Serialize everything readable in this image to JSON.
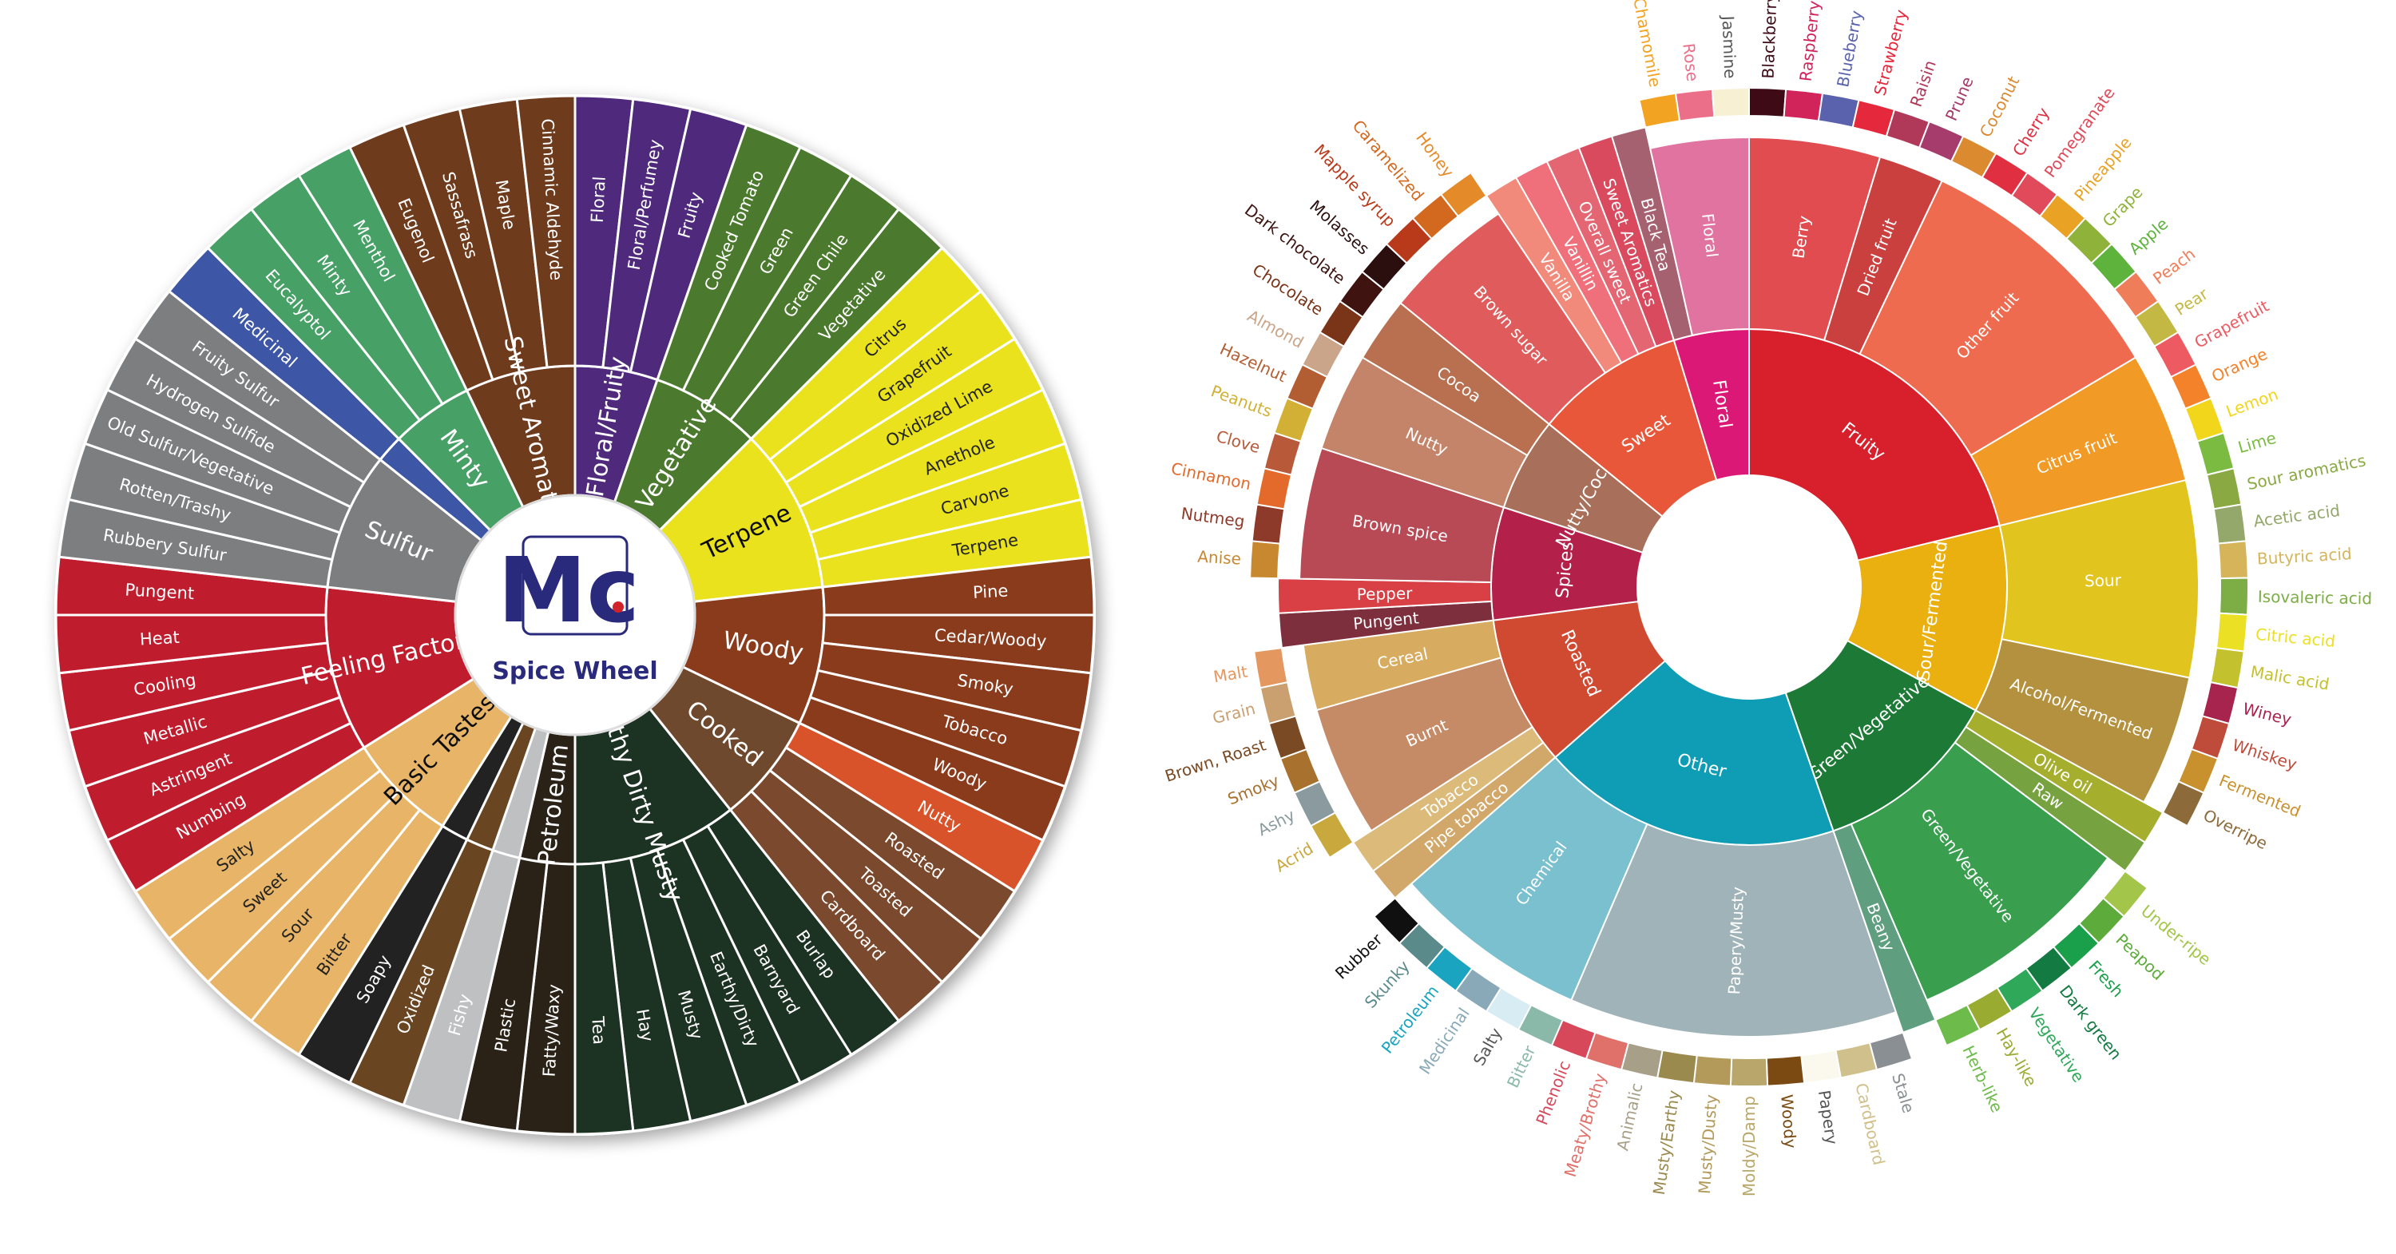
{
  "spice_wheel": {
    "logo_text": "Spice Wheel",
    "brand_mark": "Mc",
    "categories": [
      {
        "name": "Floral/Fruity",
        "color": "#4f2a7c",
        "items": [
          "Floral",
          "Floral/Perfumey",
          "Fruity"
        ]
      },
      {
        "name": "Vegetative",
        "color": "#4b7a2e",
        "items": [
          "Cooked Tomato",
          "Green",
          "Green Chile",
          "Vegetative"
        ]
      },
      {
        "name": "Terpene",
        "color": "#e9e21e",
        "dark_text": true,
        "items": [
          "Citrus",
          "Grapefruit",
          "Oxidized Lime",
          "Anethole",
          "Carvone",
          "Terpene"
        ]
      },
      {
        "name": "Woody",
        "color": "#8a3a1f",
        "items": [
          "Pine",
          "Cedar/Woody",
          "Smoky",
          "Tobacco",
          "Woody"
        ]
      },
      {
        "name": "Cooked",
        "color": "#6e4a2e",
        "items": [
          "Nutty",
          "Roasted",
          "Toasted",
          "Cardboard"
        ],
        "item_colors": [
          "#d9532a",
          "#7a4a2e",
          "#7a4a2e",
          "#7a4a2e"
        ]
      },
      {
        "name": "Earthy Dirty Musty",
        "color": "#1f3020",
        "items": [
          "Burlap",
          "Barnyard",
          "Earthy/Dirty",
          "Musty",
          "Hay",
          "Tea"
        ]
      },
      {
        "name": "Petroleum",
        "color": "#2b2016",
        "items": [
          "Fatty/Waxy",
          "Plastic"
        ]
      },
      {
        "name": "",
        "color": "#bfc0c2",
        "items": [
          "Fishy"
        ]
      },
      {
        "name": "",
        "color": "#6a4420",
        "items": [
          "Oxidized"
        ]
      },
      {
        "name": "",
        "color": "#222222",
        "items": [
          "Soapy"
        ]
      },
      {
        "name": "Basic Tastes",
        "color": "#e8b567",
        "dark_text": true,
        "items": [
          "Bitter",
          "Sour",
          "Sweet",
          "Salty"
        ]
      },
      {
        "name": "Feeling Factors",
        "color": "#bf1e2e",
        "items": [
          "Numbing",
          "Astringent",
          "Metallic",
          "Cooling",
          "Heat",
          "Pungent"
        ]
      },
      {
        "name": "Sulfur",
        "color": "#7d7e80",
        "items": [
          "Rubbery Sulfur",
          "Rotten/Trashy",
          "Old Sulfur/Vegetative",
          "Hydrogen Sulfide",
          "Fruity Sulfur"
        ]
      },
      {
        "name": "",
        "color": "#3e57a5",
        "items": [
          "Medicinal"
        ]
      },
      {
        "name": "Minty",
        "color": "#46a066",
        "items": [
          "Eucalyptol",
          "Minty",
          "Menthol"
        ]
      },
      {
        "name": "Sweet Aromatic",
        "color": "#6e3b1e",
        "items": [
          "Eugenol",
          "Sassafrass",
          "Maple",
          "Cinnamic Aldehyde"
        ]
      }
    ]
  },
  "flavor_wheel": {
    "categories": [
      {
        "name": "Fruity",
        "color": "#d81f2c",
        "subs": [
          {
            "name": "Berry",
            "color": "#e04c4f",
            "leaves": [
              [
                "Blackberry",
                "#3d0a16"
              ],
              [
                "Raspberry",
                "#d0245a"
              ],
              [
                "Blueberry",
                "#5a62ad"
              ],
              [
                "Strawberry",
                "#e6283c"
              ]
            ]
          },
          {
            "name": "Dried fruit",
            "color": "#c9403f",
            "leaves": [
              [
                "Raisin",
                "#b0395a"
              ],
              [
                "Prune",
                "#a53c6c"
              ]
            ]
          },
          {
            "name": "Other fruit",
            "color": "#ef6b50",
            "leaves": [
              [
                "Coconut",
                "#dc8a2f"
              ],
              [
                "Cherry",
                "#df2f40"
              ],
              [
                "Pomegranate",
                "#e14a5a"
              ],
              [
                "Pineapple",
                "#e9a224"
              ],
              [
                "Grape",
                "#8fb23a"
              ],
              [
                "Apple",
                "#5db33b"
              ],
              [
                "Peach",
                "#ef7d5a"
              ],
              [
                "Pear",
                "#c4b844"
              ]
            ]
          },
          {
            "name": "Citrus fruit",
            "color": "#f19a25",
            "leaves": [
              [
                "Grapefruit",
                "#ee5a62"
              ],
              [
                "Orange",
                "#f3822a"
              ],
              [
                "Lemon",
                "#f2d61c"
              ],
              [
                "Lime",
                "#7bbb42"
              ]
            ]
          }
        ]
      },
      {
        "name": "Sour/Fermented",
        "color": "#eab00f",
        "subs": [
          {
            "name": "Sour",
            "color": "#e1c41e",
            "leaves": [
              [
                "Sour aromatics",
                "#8aa943"
              ],
              [
                "Acetic acid",
                "#93a86a"
              ],
              [
                "Butyric acid",
                "#d5b45a"
              ],
              [
                "Isovaleric acid",
                "#7dae46"
              ],
              [
                "Citric acid",
                "#ece025"
              ],
              [
                "Malic acid",
                "#c4c12e"
              ]
            ]
          },
          {
            "name": "Alcohol/Fermented",
            "color": "#b3913e",
            "leaves": [
              [
                "Winey",
                "#a6244d"
              ],
              [
                "Whiskey",
                "#bf4b3a"
              ],
              [
                "Fermented",
                "#c9902e"
              ],
              [
                "Overripe",
                "#8d6a3a"
              ]
            ]
          }
        ]
      },
      {
        "name": "Green/Vegetative",
        "color": "#1c7a36",
        "subs": [
          {
            "name": "Olive oil",
            "color": "#a6ae2e",
            "leaves": []
          },
          {
            "name": "Raw",
            "color": "#76a340",
            "leaves": []
          },
          {
            "name": "Green/Vegetative",
            "color": "#3a9e4f",
            "leaves": [
              [
                "Under-ripe",
                "#a3c64a"
              ],
              [
                "Peapod",
                "#5dab3a"
              ],
              [
                "Fresh",
                "#1aa04a"
              ],
              [
                "Dark green",
                "#137a42"
              ],
              [
                "Vegetative",
                "#2fa85a"
              ],
              [
                "Hay-like",
                "#9aab32"
              ],
              [
                "Herb-like",
                "#6dbb4a"
              ]
            ]
          },
          {
            "name": "Beany",
            "color": "#5f9f80",
            "leaves": []
          }
        ]
      },
      {
        "name": "Other",
        "color": "#0e9db5",
        "subs": [
          {
            "name": "Papery/Musty",
            "color": "#9fb3b8",
            "leaves": [
              [
                "Stale",
                "#8a8f94"
              ],
              [
                "Cardboard",
                "#cfc08c"
              ],
              [
                "Papery",
                "#fbf8ee"
              ],
              [
                "Woody",
                "#7a4a12"
              ],
              [
                "Moldy/Damp",
                "#b8a66a"
              ],
              [
                "Musty/Dusty",
                "#b39a5a"
              ],
              [
                "Musty/Earthy",
                "#9a8a4e"
              ],
              [
                "Animalic",
                "#a79f88"
              ],
              [
                "Meaty/Brothy",
                "#e0706a"
              ],
              [
                "Phenolic",
                "#d6485a"
              ]
            ]
          },
          {
            "name": "Chemical",
            "color": "#7ac0cf",
            "leaves": [
              [
                "Bitter",
                "#8ab9a9"
              ],
              [
                "Salty",
                "#d8ecf4"
              ],
              [
                "Medicinal",
                "#8aa9b8"
              ],
              [
                "Petroleum",
                "#1aa4c0"
              ],
              [
                "Skunky",
                "#5b8a8a"
              ],
              [
                "Rubber",
                "#101010"
              ]
            ]
          }
        ]
      },
      {
        "name": "Roasted",
        "color": "#d04a32",
        "subs": [
          {
            "name": "Pipe tobacco",
            "color": "#d2a86a",
            "leaves": []
          },
          {
            "name": "Tobacco",
            "color": "#dcbb7a",
            "leaves": []
          },
          {
            "name": "Burnt",
            "color": "#c58a66",
            "leaves": [
              [
                "Acrid",
                "#c9a83e"
              ],
              [
                "Ashy",
                "#8a9a9e"
              ],
              [
                "Smoky",
                "#a8712e"
              ],
              [
                "Brown, Roast",
                "#7a4a24"
              ]
            ]
          },
          {
            "name": "Cereal",
            "color": "#d8ac60",
            "leaves": [
              [
                "Grain",
                "#caa070"
              ],
              [
                "Malt",
                "#e49860"
              ]
            ]
          }
        ]
      },
      {
        "name": "Spices",
        "color": "#b3204a",
        "subs": [
          {
            "name": "Pungent",
            "color": "#7e2f3e",
            "leaves": []
          },
          {
            "name": "Pepper",
            "color": "#d84045",
            "leaves": []
          },
          {
            "name": "Brown spice",
            "color": "#b84a55",
            "leaves": [
              [
                "Anise",
                "#c88830"
              ],
              [
                "Nutmeg",
                "#8e3a2a"
              ],
              [
                "Cinnamon",
                "#e36a2a"
              ],
              [
                "Clove",
                "#b85a3a"
              ]
            ]
          }
        ]
      },
      {
        "name": "Nutty/Cocoa",
        "color": "#a8705a",
        "subs": [
          {
            "name": "Nutty",
            "color": "#c4846a",
            "leaves": [
              [
                "Peanuts",
                "#d2b036"
              ],
              [
                "Hazelnut",
                "#b35d33"
              ],
              [
                "Almond",
                "#caa58a"
              ]
            ]
          },
          {
            "name": "Cocoa",
            "color": "#b87050",
            "leaves": [
              [
                "Chocolate",
                "#7a3418"
              ],
              [
                "Dark chocolate",
                "#3e1310"
              ]
            ]
          }
        ]
      },
      {
        "name": "Sweet",
        "color": "#e8573a",
        "subs": [
          {
            "name": "Brown sugar",
            "color": "#e05c5c",
            "leaves": [
              [
                "Molasses",
                "#2b0e0e"
              ],
              [
                "Mapple syrup",
                "#b83a1a"
              ],
              [
                "Caramelized",
                "#d2691e"
              ],
              [
                "Honey",
                "#e58a28"
              ]
            ]
          },
          {
            "name": "Vanilla",
            "color": "#f18a7a",
            "leaves": []
          },
          {
            "name": "Vanillin",
            "color": "#ef6f7a",
            "leaves": []
          },
          {
            "name": "Overall sweet",
            "color": "#e56673",
            "leaves": []
          },
          {
            "name": "Sweet Aromatics",
            "color": "#d94a5e",
            "leaves": []
          }
        ]
      },
      {
        "name": "Floral",
        "color": "#dc1876",
        "subs": [
          {
            "name": "Black Tea",
            "color": "#a66170",
            "leaves": []
          },
          {
            "name": "Floral",
            "color": "#e073a0",
            "leaves": [
              [
                "Chamomile",
                "#f2a322"
              ],
              [
                "Rose",
                "#ec6f8a"
              ],
              [
                "Jasmine",
                "#f7f0d2"
              ]
            ]
          }
        ]
      }
    ]
  }
}
